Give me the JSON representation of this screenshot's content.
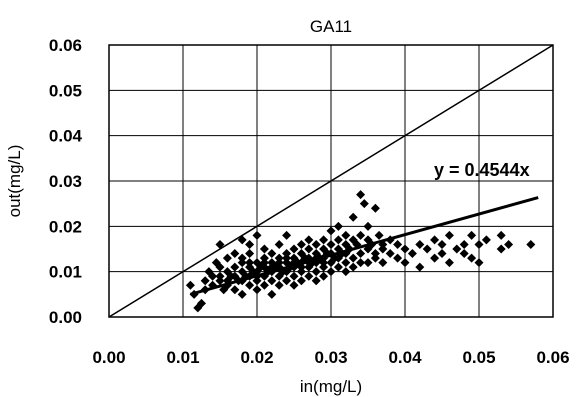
{
  "chart_data": {
    "type": "scatter",
    "title": "GA11",
    "xlabel": "in(mg/L)",
    "ylabel": "out(mg/L)",
    "xlim": [
      0,
      0.06
    ],
    "ylim": [
      0,
      0.06
    ],
    "x_ticks": [
      "0.00",
      "0.01",
      "0.02",
      "0.03",
      "0.04",
      "0.05",
      "0.06"
    ],
    "y_ticks": [
      "0.00",
      "0.01",
      "0.02",
      "0.03",
      "0.04",
      "0.05",
      "0.06"
    ],
    "grid": true,
    "reference_line": {
      "type": "y=x",
      "from": [
        0,
        0
      ],
      "to": [
        0.06,
        0.06
      ]
    },
    "trendline": {
      "slope": 0.4544,
      "x_range": [
        0.011,
        0.058
      ],
      "label": "y = 0.4544x"
    },
    "marker_color": "#000000",
    "points": [
      [
        0.011,
        0.007
      ],
      [
        0.0115,
        0.005
      ],
      [
        0.012,
        0.002
      ],
      [
        0.0125,
        0.003
      ],
      [
        0.013,
        0.008
      ],
      [
        0.013,
        0.006
      ],
      [
        0.0135,
        0.01
      ],
      [
        0.014,
        0.007
      ],
      [
        0.014,
        0.009
      ],
      [
        0.0145,
        0.012
      ],
      [
        0.015,
        0.008
      ],
      [
        0.015,
        0.016
      ],
      [
        0.015,
        0.011
      ],
      [
        0.0155,
        0.006
      ],
      [
        0.016,
        0.01
      ],
      [
        0.016,
        0.013
      ],
      [
        0.016,
        0.007
      ],
      [
        0.0165,
        0.009
      ],
      [
        0.017,
        0.011
      ],
      [
        0.017,
        0.006
      ],
      [
        0.017,
        0.014
      ],
      [
        0.0175,
        0.008
      ],
      [
        0.018,
        0.01
      ],
      [
        0.018,
        0.012
      ],
      [
        0.018,
        0.017
      ],
      [
        0.018,
        0.005
      ],
      [
        0.0185,
        0.009
      ],
      [
        0.019,
        0.011
      ],
      [
        0.019,
        0.007
      ],
      [
        0.019,
        0.014
      ],
      [
        0.019,
        0.016
      ],
      [
        0.0195,
        0.01
      ],
      [
        0.02,
        0.012
      ],
      [
        0.02,
        0.008
      ],
      [
        0.02,
        0.006
      ],
      [
        0.02,
        0.018
      ],
      [
        0.0205,
        0.011
      ],
      [
        0.021,
        0.009
      ],
      [
        0.021,
        0.013
      ],
      [
        0.021,
        0.015
      ],
      [
        0.021,
        0.007
      ],
      [
        0.0215,
        0.01
      ],
      [
        0.022,
        0.012
      ],
      [
        0.022,
        0.008
      ],
      [
        0.022,
        0.014
      ],
      [
        0.022,
        0.005
      ],
      [
        0.0225,
        0.011
      ],
      [
        0.023,
        0.009
      ],
      [
        0.023,
        0.013
      ],
      [
        0.023,
        0.016
      ],
      [
        0.023,
        0.007
      ],
      [
        0.0235,
        0.01
      ],
      [
        0.024,
        0.012
      ],
      [
        0.024,
        0.014
      ],
      [
        0.024,
        0.008
      ],
      [
        0.024,
        0.018
      ],
      [
        0.0245,
        0.011
      ],
      [
        0.025,
        0.013
      ],
      [
        0.025,
        0.009
      ],
      [
        0.025,
        0.015
      ],
      [
        0.025,
        0.007
      ],
      [
        0.0255,
        0.012
      ],
      [
        0.026,
        0.01
      ],
      [
        0.026,
        0.014
      ],
      [
        0.026,
        0.016
      ],
      [
        0.026,
        0.008
      ],
      [
        0.0265,
        0.013
      ],
      [
        0.027,
        0.011
      ],
      [
        0.027,
        0.015
      ],
      [
        0.027,
        0.009
      ],
      [
        0.027,
        0.017
      ],
      [
        0.0275,
        0.012
      ],
      [
        0.028,
        0.014
      ],
      [
        0.028,
        0.01
      ],
      [
        0.028,
        0.016
      ],
      [
        0.028,
        0.008
      ],
      [
        0.0285,
        0.013
      ],
      [
        0.029,
        0.011
      ],
      [
        0.029,
        0.015
      ],
      [
        0.029,
        0.017
      ],
      [
        0.029,
        0.009
      ],
      [
        0.0295,
        0.014
      ],
      [
        0.03,
        0.012
      ],
      [
        0.03,
        0.016
      ],
      [
        0.03,
        0.01
      ],
      [
        0.03,
        0.019
      ],
      [
        0.0305,
        0.013
      ],
      [
        0.031,
        0.015
      ],
      [
        0.031,
        0.011
      ],
      [
        0.031,
        0.017
      ],
      [
        0.031,
        0.02
      ],
      [
        0.0315,
        0.014
      ],
      [
        0.032,
        0.012
      ],
      [
        0.032,
        0.016
      ],
      [
        0.032,
        0.018
      ],
      [
        0.032,
        0.01
      ],
      [
        0.0325,
        0.015
      ],
      [
        0.033,
        0.013
      ],
      [
        0.033,
        0.017
      ],
      [
        0.033,
        0.022
      ],
      [
        0.033,
        0.011
      ],
      [
        0.0335,
        0.016
      ],
      [
        0.034,
        0.027
      ],
      [
        0.034,
        0.014
      ],
      [
        0.034,
        0.018
      ],
      [
        0.034,
        0.012
      ],
      [
        0.0345,
        0.025
      ],
      [
        0.035,
        0.015
      ],
      [
        0.035,
        0.017
      ],
      [
        0.035,
        0.02
      ],
      [
        0.035,
        0.012
      ],
      [
        0.0355,
        0.016
      ],
      [
        0.036,
        0.024
      ],
      [
        0.036,
        0.014
      ],
      [
        0.036,
        0.013
      ],
      [
        0.0365,
        0.018
      ],
      [
        0.037,
        0.015
      ],
      [
        0.037,
        0.016
      ],
      [
        0.037,
        0.012
      ],
      [
        0.038,
        0.014
      ],
      [
        0.038,
        0.017
      ],
      [
        0.039,
        0.013
      ],
      [
        0.039,
        0.016
      ],
      [
        0.04,
        0.015
      ],
      [
        0.04,
        0.012
      ],
      [
        0.041,
        0.014
      ],
      [
        0.042,
        0.016
      ],
      [
        0.042,
        0.011
      ],
      [
        0.043,
        0.015
      ],
      [
        0.044,
        0.013
      ],
      [
        0.044,
        0.017
      ],
      [
        0.045,
        0.016
      ],
      [
        0.045,
        0.014
      ],
      [
        0.046,
        0.018
      ],
      [
        0.046,
        0.012
      ],
      [
        0.047,
        0.015
      ],
      [
        0.048,
        0.014
      ],
      [
        0.048,
        0.016
      ],
      [
        0.049,
        0.013
      ],
      [
        0.049,
        0.018
      ],
      [
        0.05,
        0.012
      ],
      [
        0.05,
        0.016
      ],
      [
        0.051,
        0.017
      ],
      [
        0.053,
        0.018
      ],
      [
        0.053,
        0.015
      ],
      [
        0.054,
        0.016
      ],
      [
        0.057,
        0.016
      ],
      [
        0.018,
        0.013
      ],
      [
        0.019,
        0.012
      ],
      [
        0.021,
        0.011
      ],
      [
        0.022,
        0.01
      ],
      [
        0.023,
        0.011
      ],
      [
        0.024,
        0.01
      ],
      [
        0.025,
        0.011
      ],
      [
        0.026,
        0.012
      ],
      [
        0.027,
        0.013
      ],
      [
        0.028,
        0.012
      ],
      [
        0.029,
        0.013
      ],
      [
        0.03,
        0.014
      ],
      [
        0.031,
        0.013
      ],
      [
        0.032,
        0.014
      ],
      [
        0.02,
        0.01
      ],
      [
        0.021,
        0.012
      ],
      [
        0.022,
        0.011
      ],
      [
        0.023,
        0.012
      ],
      [
        0.024,
        0.013
      ],
      [
        0.025,
        0.012
      ],
      [
        0.026,
        0.011
      ],
      [
        0.027,
        0.012
      ],
      [
        0.028,
        0.013
      ],
      [
        0.029,
        0.012
      ],
      [
        0.019,
        0.009
      ],
      [
        0.02,
        0.009
      ],
      [
        0.017,
        0.009
      ],
      [
        0.016,
        0.008
      ],
      [
        0.018,
        0.008
      ],
      [
        0.015,
        0.009
      ]
    ]
  }
}
